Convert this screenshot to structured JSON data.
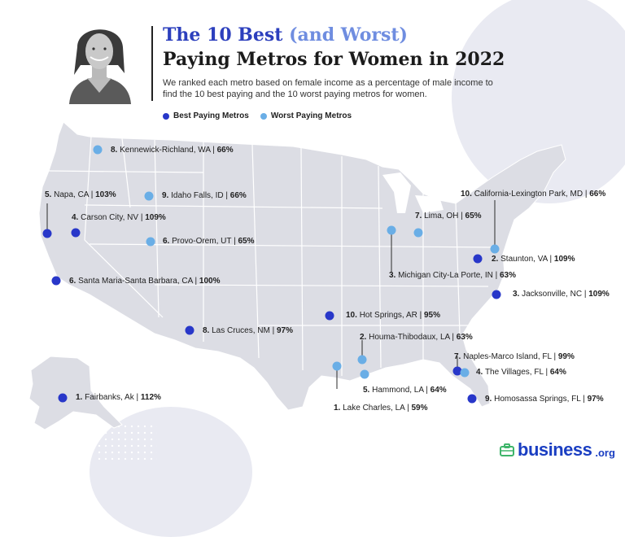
{
  "header": {
    "title_part1": "The 10 Best ",
    "title_part2": "(and Worst)",
    "title_line2": "Paying Metros for Women in 2022",
    "subtitle": "We ranked each metro based on female income as a percentage of male income to find the 10 best paying and the 10 worst paying metros for women."
  },
  "legend": [
    {
      "label": "Best Paying Metros",
      "color": "#2837c9"
    },
    {
      "label": "Worst Paying Metros",
      "color": "#6aaee6"
    }
  ],
  "colors": {
    "best": "#2837c9",
    "worst": "#6aaee6",
    "map_fill": "#dcdde4",
    "state_lines": "#ffffff",
    "brand": "#1a3ec2"
  },
  "metros": [
    {
      "rank": "8.",
      "name": "Kennewick-Richland, WA",
      "value": "66%",
      "type": "worst"
    },
    {
      "rank": "5.",
      "name": "Napa, CA",
      "value": "103%",
      "type": "best"
    },
    {
      "rank": "9.",
      "name": "Idaho Falls, ID",
      "value": "66%",
      "type": "worst"
    },
    {
      "rank": "4.",
      "name": "Carson City, NV",
      "value": "109%",
      "type": "best"
    },
    {
      "rank": "6.",
      "name": "Provo-Orem, UT",
      "value": "65%",
      "type": "worst"
    },
    {
      "rank": "6.",
      "name": "Santa Maria-Santa Barbara, CA",
      "value": "100%",
      "type": "best"
    },
    {
      "rank": "8.",
      "name": "Las Cruces, NM",
      "value": "97%",
      "type": "best"
    },
    {
      "rank": "1.",
      "name": "Fairbanks, Ak",
      "value": "112%",
      "type": "best"
    },
    {
      "rank": "10.",
      "name": "California-Lexington Park, MD",
      "value": "66%",
      "type": "worst"
    },
    {
      "rank": "7.",
      "name": "Lima, OH",
      "value": "65%",
      "type": "worst"
    },
    {
      "rank": "2.",
      "name": "Staunton, VA",
      "value": "109%",
      "type": "best"
    },
    {
      "rank": "3.",
      "name": "Michigan City-La Porte, IN",
      "value": "63%",
      "type": "worst"
    },
    {
      "rank": "3.",
      "name": "Jacksonville, NC",
      "value": "109%",
      "type": "best"
    },
    {
      "rank": "10.",
      "name": "Hot Springs, AR",
      "value": "95%",
      "type": "best"
    },
    {
      "rank": "2.",
      "name": "Houma-Thibodaux, LA",
      "value": "63%",
      "type": "worst"
    },
    {
      "rank": "7.",
      "name": "Naples-Marco Island, FL",
      "value": "99%",
      "type": "best"
    },
    {
      "rank": "4.",
      "name": "The Villages, FL",
      "value": "64%",
      "type": "worst"
    },
    {
      "rank": "5.",
      "name": "Hammond, LA",
      "value": "64%",
      "type": "worst"
    },
    {
      "rank": "9.",
      "name": "Homosassa Springs, FL",
      "value": "97%",
      "type": "best"
    },
    {
      "rank": "1.",
      "name": "Lake Charles, LA",
      "value": "59%",
      "type": "worst"
    }
  ],
  "brand": {
    "name": "business",
    "tld": ".org",
    "icon": "briefcase-icon"
  },
  "portrait": {
    "icon": "woman-portrait"
  }
}
